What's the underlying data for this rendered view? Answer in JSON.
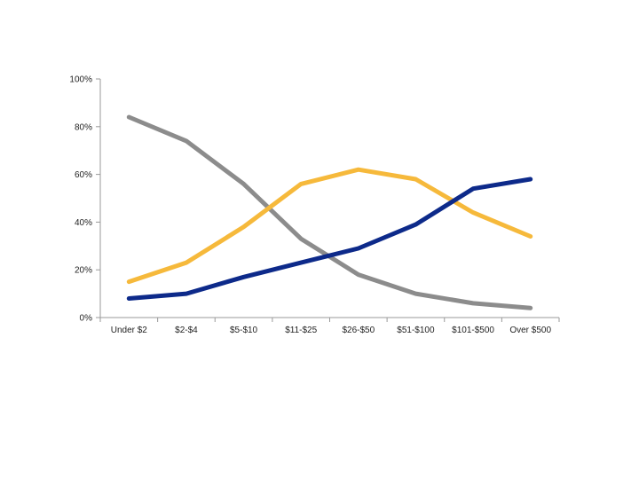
{
  "chart_data": {
    "type": "line",
    "categories": [
      "Under $2",
      "$2-$4",
      "$5-$10",
      "$11-$25",
      "$26-$50",
      "$51-$100",
      "$101-$500",
      "Over $500"
    ],
    "y_tick_labels": [
      "0%",
      "20%",
      "40%",
      "60%",
      "80%",
      "100%"
    ],
    "ylim": [
      0,
      100
    ],
    "grid": false,
    "legend": "none",
    "series": [
      {
        "color": "#8c8c8c",
        "values": [
          84,
          74,
          56,
          33,
          18,
          10,
          6,
          4
        ]
      },
      {
        "color": "#f6b93b",
        "values": [
          15,
          23,
          38,
          56,
          62,
          58,
          44,
          34
        ]
      },
      {
        "color": "#0d2a8a",
        "values": [
          8,
          10,
          17,
          23,
          29,
          39,
          54,
          58
        ]
      }
    ]
  }
}
